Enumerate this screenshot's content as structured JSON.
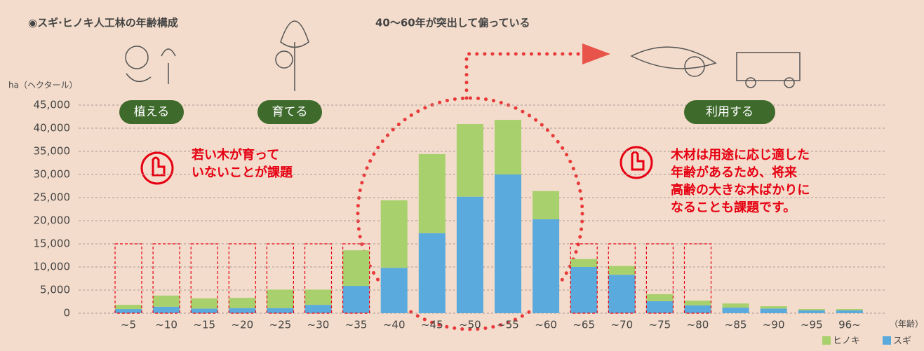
{
  "chart_data": {
    "type": "bar",
    "stacked": true,
    "title": "◉スギ·ヒノキ人工林の年齢構成",
    "subtitle": "40〜60年が突出して偏っている",
    "y_label": "ha（ヘクタール）",
    "x_label": "（年齢）",
    "categories": [
      "~5",
      "~10",
      "~15",
      "~20",
      "~25",
      "~30",
      "~35",
      "~40",
      "~45",
      "~50",
      "~55",
      "~60",
      "~65",
      "~70",
      "~75",
      "~80",
      "~85",
      "~90",
      "~95",
      "96~"
    ],
    "series": [
      {
        "name": "スギ",
        "color": "#5aaade",
        "values": [
          900,
          1400,
          1000,
          1100,
          1100,
          1800,
          5900,
          9800,
          17300,
          25200,
          30000,
          20300,
          10000,
          8300,
          2600,
          1700,
          1200,
          1000,
          600,
          600
        ]
      },
      {
        "name": "ヒノキ",
        "color": "#a8d06c",
        "values": [
          900,
          2400,
          2200,
          2200,
          4000,
          3300,
          7700,
          14600,
          17100,
          15700,
          11800,
          6100,
          1700,
          1900,
          1500,
          1000,
          900,
          500,
          300,
          300
        ]
      }
    ],
    "ylim": [
      0,
      45000
    ],
    "yticks": [
      {
        "value": 0,
        "label": "0"
      },
      {
        "value": 5000,
        "label": "5,000"
      },
      {
        "value": 10000,
        "label": "10,000"
      },
      {
        "value": 15000,
        "label": "15,000"
      },
      {
        "value": 20000,
        "label": "20,000"
      },
      {
        "value": 25000,
        "label": "25,000"
      },
      {
        "value": 30000,
        "label": "30,000"
      },
      {
        "value": 35000,
        "label": "35,000"
      },
      {
        "value": 40000,
        "label": "40,000"
      },
      {
        "value": 45000,
        "label": "45,000"
      }
    ],
    "grid": true,
    "dashed_boxes": {
      "top": 15000,
      "indices": [
        0,
        1,
        2,
        3,
        4,
        5,
        6,
        12,
        13,
        14,
        15
      ]
    },
    "stages": [
      "植える",
      "育てる",
      "利用する"
    ],
    "annotations": [
      [
        "若い木が育って",
        "いないことが課題"
      ],
      [
        "木材は用途に応じ適した",
        "年齢があるため、将来",
        "高齢の大きな木ばかりに",
        "なることも課題です。"
      ]
    ]
  }
}
